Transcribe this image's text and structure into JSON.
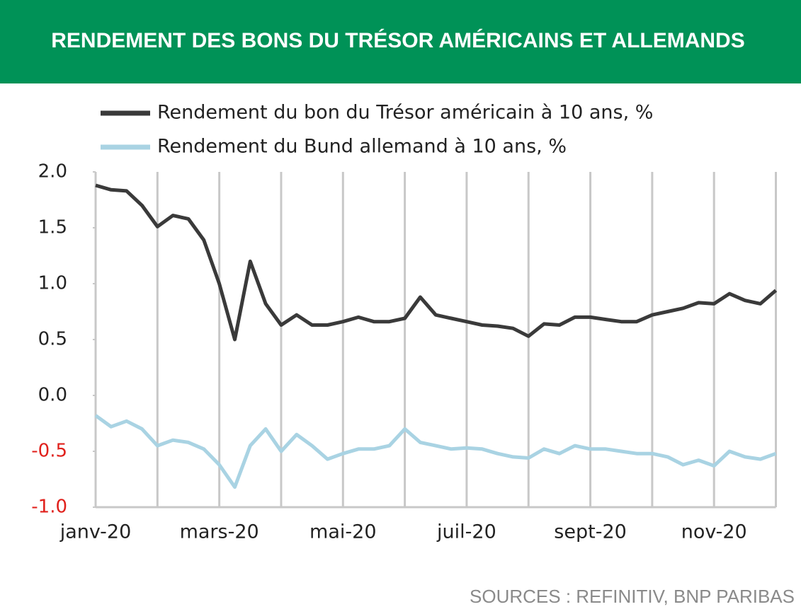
{
  "chart_data": {
    "type": "line",
    "title": "RENDEMENT DES BONS DU TRÉSOR AMÉRICAINS ET ALLEMANDS",
    "source": "SOURCES : REFINITIV, BNP PARIBAS",
    "categories": [
      "janv-20",
      null,
      null,
      null,
      null,
      null,
      null,
      null,
      "mars-20",
      null,
      null,
      null,
      null,
      null,
      null,
      null,
      "mai-20",
      null,
      null,
      null,
      null,
      null,
      null,
      null,
      "juil-20",
      null,
      null,
      null,
      null,
      null,
      null,
      null,
      "sept-20",
      null,
      null,
      null,
      null,
      null,
      null,
      null,
      "nov-20",
      null,
      null,
      null,
      null
    ],
    "series": [
      {
        "name": "Rendement du bon du Trésor américain à 10 ans, %",
        "color": "#3a3a3a",
        "values": [
          1.88,
          1.84,
          1.83,
          1.7,
          1.51,
          1.61,
          1.58,
          1.39,
          1.0,
          0.5,
          1.2,
          0.82,
          0.63,
          0.72,
          0.63,
          0.63,
          0.66,
          0.7,
          0.66,
          0.66,
          0.69,
          0.88,
          0.72,
          0.69,
          0.66,
          0.63,
          0.62,
          0.6,
          0.53,
          0.64,
          0.63,
          0.7,
          0.7,
          0.68,
          0.66,
          0.66,
          0.72,
          0.75,
          0.78,
          0.83,
          0.82,
          0.91,
          0.85,
          0.82,
          0.94
        ]
      },
      {
        "name": "Rendement du Bund allemand à 10 ans, %",
        "color": "#a9d3e3",
        "values": [
          -0.18,
          -0.28,
          -0.23,
          -0.3,
          -0.45,
          -0.4,
          -0.42,
          -0.48,
          -0.62,
          -0.82,
          -0.45,
          -0.3,
          -0.5,
          -0.35,
          -0.45,
          -0.57,
          -0.52,
          -0.48,
          -0.48,
          -0.45,
          -0.3,
          -0.42,
          -0.45,
          -0.48,
          -0.47,
          -0.48,
          -0.52,
          -0.55,
          -0.56,
          -0.48,
          -0.52,
          -0.45,
          -0.48,
          -0.48,
          -0.5,
          -0.52,
          -0.52,
          -0.55,
          -0.62,
          -0.58,
          -0.63,
          -0.5,
          -0.55,
          -0.57,
          -0.52
        ]
      }
    ],
    "ylim": [
      -1.0,
      2.0
    ],
    "yticks": [
      {
        "value": 2.0,
        "label": "2.0"
      },
      {
        "value": 1.5,
        "label": "1.5"
      },
      {
        "value": 1.0,
        "label": "1.0"
      },
      {
        "value": 0.5,
        "label": "0.5"
      },
      {
        "value": 0.0,
        "label": "0.0"
      },
      {
        "value": -0.5,
        "label": "-0.5"
      },
      {
        "value": -1.0,
        "label": "-1.0"
      }
    ],
    "negative_tick_color": "#e0201b",
    "header_color": "#009257",
    "grid": true
  }
}
